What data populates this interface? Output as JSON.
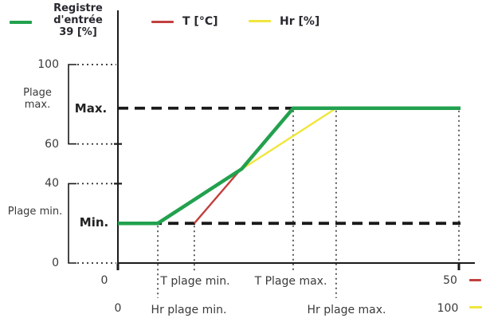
{
  "legend": {
    "output": {
      "line1": "Registre",
      "line2": "d'entrée",
      "line3": "39 [%]",
      "color": "#22A14E"
    },
    "t": {
      "label": "T [°C]",
      "color": "#C2403F"
    },
    "hr": {
      "label": "Hr [%]",
      "color": "#F0E63C"
    }
  },
  "y_axis": {
    "ticks": [
      "100",
      "60",
      "40",
      "0"
    ],
    "plage_max_line1": "Plage",
    "plage_max_line2": "max.",
    "max_marker": "Max.",
    "plage_min": "Plage min.",
    "min_marker": "Min."
  },
  "x_axis": {
    "t_row": {
      "zero": "0",
      "min": "T plage min.",
      "max": "T Plage max.",
      "end": "50"
    },
    "hr_row": {
      "zero": "0",
      "min": "Hr plage min.",
      "max": "Hr plage max.",
      "end": "100"
    }
  },
  "chart_data": {
    "type": "line",
    "title": "",
    "legend_position": "top",
    "grid": "none",
    "y_scale": {
      "unit": "%",
      "min": 0,
      "max": 100,
      "ticks": [
        100,
        60,
        40,
        0
      ]
    },
    "x_scales": {
      "t": {
        "unit": "°C",
        "min": 0,
        "max": 50
      },
      "hr": {
        "unit": "%",
        "min": 0,
        "max": 100
      }
    },
    "levels": {
      "min_output_pct": 20,
      "max_output_pct": 78
    },
    "breakpoints_pct_of_axis": {
      "hr_plage_min": 11.7,
      "t_plage_min": 22.4,
      "crossover": 36.3,
      "t_plage_max": 51.4,
      "hr_plage_max": 64,
      "axis_end": 100
    },
    "series": [
      {
        "name": "Registre d'entrée 39 [%]",
        "color": "#22A14E",
        "width": 4.5,
        "points_pct": [
          [
            0,
            20
          ],
          [
            11.7,
            20
          ],
          [
            36.3,
            47.4
          ],
          [
            51.4,
            78
          ],
          [
            100,
            78
          ]
        ]
      },
      {
        "name": "T [°C]",
        "color": "#C2403F",
        "width": 2.4,
        "points_pct": [
          [
            22.4,
            20
          ],
          [
            51.4,
            78
          ]
        ]
      },
      {
        "name": "Hr [%]",
        "color": "#F0E63C",
        "width": 2.4,
        "points_pct": [
          [
            11.7,
            20
          ],
          [
            64,
            78
          ]
        ]
      }
    ]
  }
}
